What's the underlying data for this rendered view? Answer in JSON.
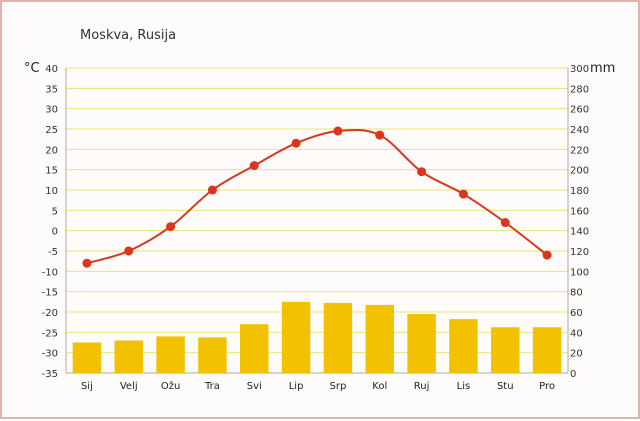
{
  "colors": {
    "grid": "#ede27a",
    "bar": "#f2c200",
    "line": "#d9351f",
    "axis": "#aaaaaa",
    "frame": "#e2b3ad"
  },
  "chart_data": {
    "type": "bar+line",
    "title": "Moskva, Rusija",
    "categories": [
      "Sij",
      "Velj",
      "Ožu",
      "Tra",
      "Svi",
      "Lip",
      "Srp",
      "Kol",
      "Ruj",
      "Lis",
      "Stu",
      "Pro"
    ],
    "y_left": {
      "unit": "°C",
      "range": [
        -35,
        40
      ],
      "ticks": [
        "40",
        "35",
        "30",
        "25",
        "20",
        "15",
        "10",
        "5",
        "0",
        "-5",
        "-10",
        "-15",
        "-20",
        "-25",
        "-30",
        "-35"
      ]
    },
    "y_right": {
      "unit": "mm",
      "range": [
        0,
        300
      ],
      "ticks": [
        "300",
        "280",
        "260",
        "240",
        "220",
        "200",
        "180",
        "160",
        "140",
        "120",
        "100",
        "80",
        "60",
        "40",
        "20",
        "0"
      ]
    },
    "grid": true,
    "series": [
      {
        "kind": "bar",
        "axis": "right",
        "values": [
          30,
          32,
          36,
          35,
          48,
          70,
          69,
          67,
          58,
          53,
          45,
          45
        ]
      },
      {
        "kind": "line",
        "axis": "left",
        "values": [
          -8,
          -5,
          1,
          10,
          16,
          21.5,
          24.5,
          23.5,
          14.5,
          9,
          2,
          -6
        ]
      }
    ]
  }
}
